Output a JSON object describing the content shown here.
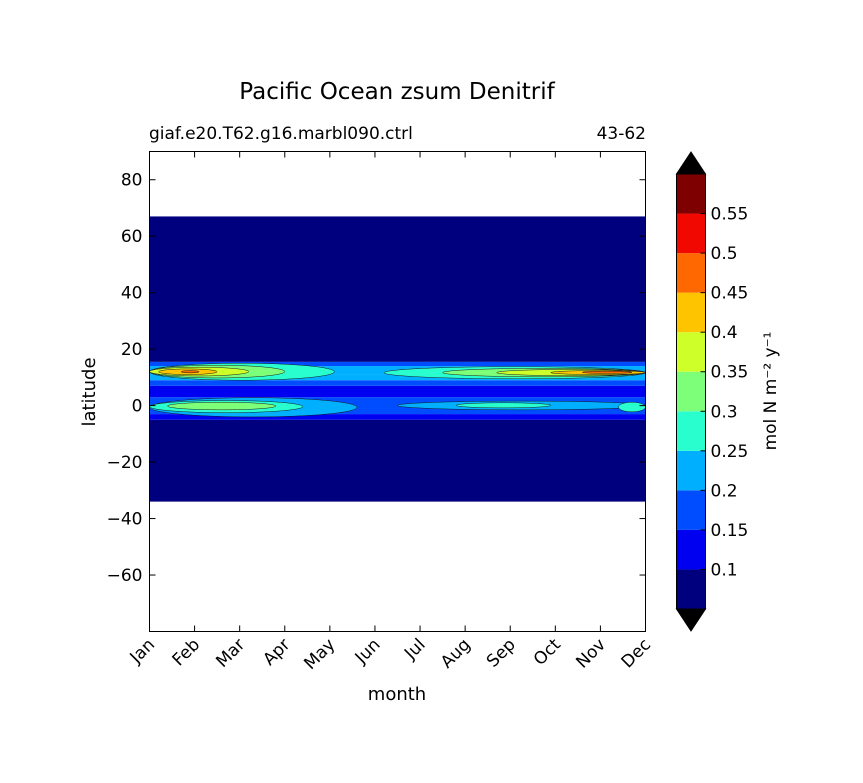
{
  "chart_data": {
    "type": "heatmap",
    "title": "Pacific Ocean zsum Denitrif",
    "subtitle_left": "giaf.e20.T62.g16.marbl090.ctrl",
    "subtitle_right": "43-62",
    "xlabel": "month",
    "ylabel": "latitude",
    "x_tick_labels": [
      "Jan",
      "Feb",
      "Mar",
      "Apr",
      "May",
      "Jun",
      "Jul",
      "Aug",
      "Sep",
      "Oct",
      "Nov",
      "Dec"
    ],
    "y_ticks": [
      80,
      60,
      40,
      20,
      0,
      -20,
      -40,
      -60
    ],
    "y_tick_labels": [
      "80",
      "60",
      "40",
      "20",
      "0",
      "−20",
      "−40",
      "−60"
    ],
    "ylim": [
      -80,
      90
    ],
    "data_lat_range": [
      -34,
      67
    ],
    "colorbar": {
      "label": "mol N m⁻² y⁻¹",
      "levels": [
        0.05,
        0.1,
        0.15,
        0.2,
        0.25,
        0.3,
        0.35,
        0.4,
        0.45,
        0.5,
        0.55,
        0.6
      ],
      "tick_labels": [
        "0.1",
        "0.15",
        "0.2",
        "0.25",
        "0.3",
        "0.35",
        "0.4",
        "0.45",
        "0.5",
        "0.55"
      ],
      "colors": [
        "#00007f",
        "#0000f1",
        "#004cff",
        "#00b0ff",
        "#29ffce",
        "#7dff7a",
        "#ceff29",
        "#ffc400",
        "#ff6800",
        "#f10800",
        "#7f0000"
      ],
      "extend_colors": [
        "#000000",
        "#000000"
      ]
    },
    "bands": [
      {
        "lat": [
          -34,
          -5
        ],
        "level": 0
      },
      {
        "lat": [
          -5,
          -3
        ],
        "level": 1
      },
      {
        "lat": [
          -3,
          3
        ],
        "level": 2
      },
      {
        "lat": [
          3,
          7
        ],
        "level": 1
      },
      {
        "lat": [
          7,
          9
        ],
        "level": 2
      },
      {
        "lat": [
          9,
          11
        ],
        "level": 3
      },
      {
        "lat": [
          11,
          14
        ],
        "level": 3
      },
      {
        "lat": [
          14,
          15.5
        ],
        "level": 2
      },
      {
        "lat": [
          15.5,
          67
        ],
        "level": 0
      }
    ],
    "features": [
      {
        "month": [
          0,
          4.6
        ],
        "lat": [
          -4,
          2.8
        ],
        "level": 3
      },
      {
        "month": [
          0,
          3.4
        ],
        "lat": [
          -2.5,
          1.8
        ],
        "level": 4
      },
      {
        "month": [
          0.4,
          2.8
        ],
        "lat": [
          -1.5,
          1.2
        ],
        "level": 5
      },
      {
        "month": [
          5.5,
          11
        ],
        "lat": [
          -1.5,
          1.6
        ],
        "level": 3
      },
      {
        "month": [
          6.8,
          8.9
        ],
        "lat": [
          -0.8,
          1.0
        ],
        "level": 4
      },
      {
        "month": [
          10.4,
          11
        ],
        "lat": [
          -2.2,
          1.2
        ],
        "level": 4
      },
      {
        "month": [
          0,
          4.1
        ],
        "lat": [
          9,
          15
        ],
        "level": 4
      },
      {
        "month": [
          0,
          3.0
        ],
        "lat": [
          9.8,
          14.3
        ],
        "level": 5
      },
      {
        "month": [
          0,
          2.2
        ],
        "lat": [
          10.5,
          13.6
        ],
        "level": 6
      },
      {
        "month": [
          0.2,
          1.5
        ],
        "lat": [
          11,
          13
        ],
        "level": 7
      },
      {
        "month": [
          0.7,
          1.1
        ],
        "lat": [
          11.6,
          12.4
        ],
        "level": 8
      },
      {
        "month": [
          5.2,
          11
        ],
        "lat": [
          9.5,
          13.8
        ],
        "level": 4
      },
      {
        "month": [
          6.5,
          11
        ],
        "lat": [
          10.2,
          13.2
        ],
        "level": 5
      },
      {
        "month": [
          7.7,
          11
        ],
        "lat": [
          10.6,
          12.8
        ],
        "level": 6
      },
      {
        "month": [
          8.9,
          11
        ],
        "lat": [
          11,
          12.4
        ],
        "level": 7
      },
      {
        "month": [
          9.6,
          10.7
        ],
        "lat": [
          11.4,
          12.2
        ],
        "level": 8
      }
    ]
  }
}
